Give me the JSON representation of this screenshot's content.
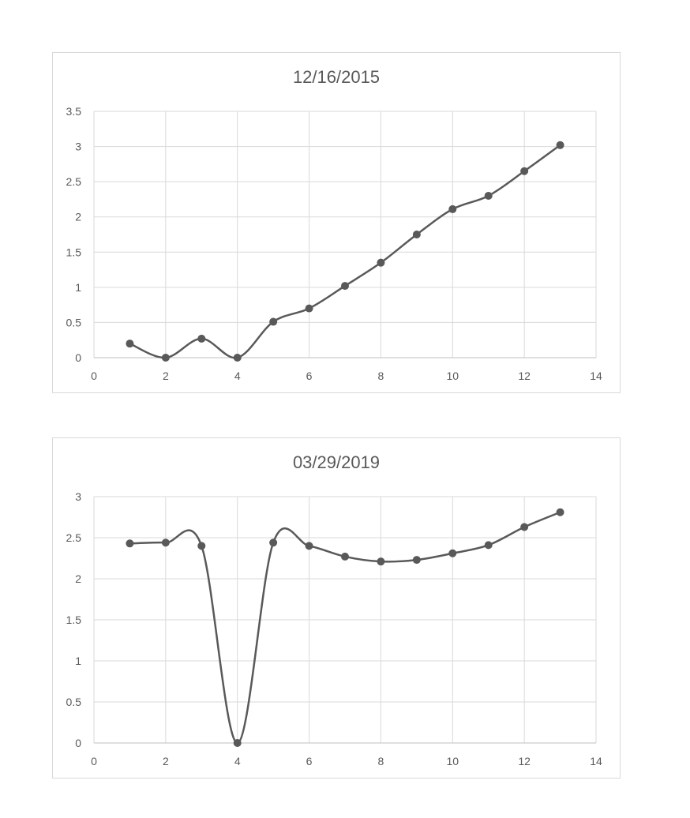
{
  "chart_data": [
    {
      "type": "scatter",
      "title": "12/16/2015",
      "xlabel": "",
      "ylabel": "",
      "xlim": [
        0,
        14
      ],
      "ylim": [
        0,
        3.5
      ],
      "x_ticks": [
        "0",
        "2",
        "4",
        "6",
        "8",
        "10",
        "12",
        "14"
      ],
      "y_ticks": [
        "0",
        "0.5",
        "1",
        "1.5",
        "2",
        "2.5",
        "3",
        "3.5"
      ],
      "grid": true,
      "smooth_line": true,
      "legend": "none",
      "series": [
        {
          "color": "#595959",
          "x": [
            1,
            2,
            3,
            4,
            5,
            6,
            7,
            8,
            9,
            10,
            11,
            12,
            13
          ],
          "y": [
            0.2,
            0.0,
            0.27,
            0.0,
            0.51,
            0.7,
            1.02,
            1.35,
            1.75,
            2.11,
            2.3,
            2.65,
            3.02
          ]
        }
      ]
    },
    {
      "type": "scatter",
      "title": "03/29/2019",
      "xlabel": "",
      "ylabel": "",
      "xlim": [
        0,
        14
      ],
      "ylim": [
        0,
        3
      ],
      "x_ticks": [
        "0",
        "2",
        "4",
        "6",
        "8",
        "10",
        "12",
        "14"
      ],
      "y_ticks": [
        "0",
        "0.5",
        "1",
        "1.5",
        "2",
        "2.5",
        "3"
      ],
      "grid": true,
      "smooth_line": true,
      "legend": "none",
      "series": [
        {
          "color": "#595959",
          "x": [
            1,
            2,
            3,
            4,
            5,
            6,
            7,
            8,
            9,
            10,
            11,
            12,
            13
          ],
          "y": [
            2.43,
            2.44,
            2.4,
            0.0,
            2.44,
            2.4,
            2.27,
            2.21,
            2.23,
            2.31,
            2.41,
            2.63,
            2.81
          ]
        }
      ]
    }
  ]
}
